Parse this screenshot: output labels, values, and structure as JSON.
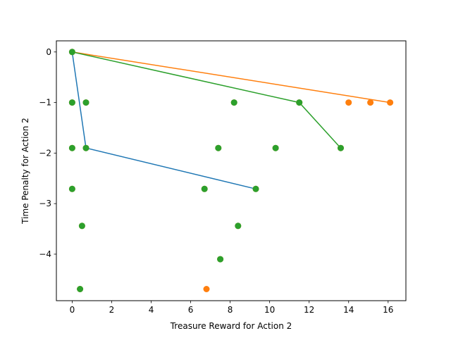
{
  "chart_data": {
    "type": "scatter",
    "xlabel": "Treasure Reward for Action 2",
    "ylabel": "Time Penalty for Action 2",
    "xlim": [
      -0.8,
      16.9
    ],
    "ylim": [
      -4.92,
      0.22
    ],
    "grid": false,
    "x_ticks": [
      0,
      2,
      4,
      6,
      8,
      10,
      12,
      14,
      16
    ],
    "y_ticks": [
      0,
      -1,
      -2,
      -3,
      -4
    ],
    "colors": {
      "blue": "#1f77b4",
      "orange": "#ff7f0e",
      "green": "#2ca02c"
    },
    "lines": [
      {
        "color": "blue",
        "points": [
          [
            0,
            0
          ],
          [
            0.7,
            -1.9
          ],
          [
            9.3,
            -2.71
          ]
        ]
      },
      {
        "color": "orange",
        "points": [
          [
            0,
            0
          ],
          [
            16.1,
            -1.0
          ]
        ]
      },
      {
        "color": "green",
        "points": [
          [
            0,
            0
          ],
          [
            11.5,
            -1.0
          ],
          [
            13.6,
            -1.9
          ]
        ]
      }
    ],
    "orange_points": [
      [
        0,
        0
      ],
      [
        0,
        -1.0
      ],
      [
        0.7,
        -1.0
      ],
      [
        8.2,
        -1.0
      ],
      [
        11.5,
        -1.0
      ],
      [
        14.0,
        -1.0
      ],
      [
        15.1,
        -1.0
      ],
      [
        16.1,
        -1.0
      ],
      [
        0,
        -1.9
      ],
      [
        0.7,
        -1.9
      ],
      [
        7.4,
        -1.9
      ],
      [
        10.3,
        -1.9
      ],
      [
        13.6,
        -1.9
      ],
      [
        0,
        -2.71
      ],
      [
        6.7,
        -2.71
      ],
      [
        9.3,
        -2.71
      ],
      [
        0.5,
        -3.44
      ],
      [
        8.4,
        -3.44
      ],
      [
        7.5,
        -4.1
      ],
      [
        0.4,
        -4.69
      ],
      [
        6.8,
        -4.69
      ]
    ],
    "green_points": [
      [
        0,
        0
      ],
      [
        0,
        -1.0
      ],
      [
        0.7,
        -1.0
      ],
      [
        8.2,
        -1.0
      ],
      [
        11.5,
        -1.0
      ],
      [
        0,
        -1.9
      ],
      [
        0.7,
        -1.9
      ],
      [
        7.4,
        -1.9
      ],
      [
        10.3,
        -1.9
      ],
      [
        13.6,
        -1.9
      ],
      [
        0,
        -2.71
      ],
      [
        6.7,
        -2.71
      ],
      [
        9.3,
        -2.71
      ],
      [
        0.5,
        -3.44
      ],
      [
        8.4,
        -3.44
      ],
      [
        7.5,
        -4.1
      ],
      [
        0.4,
        -4.69
      ]
    ]
  }
}
